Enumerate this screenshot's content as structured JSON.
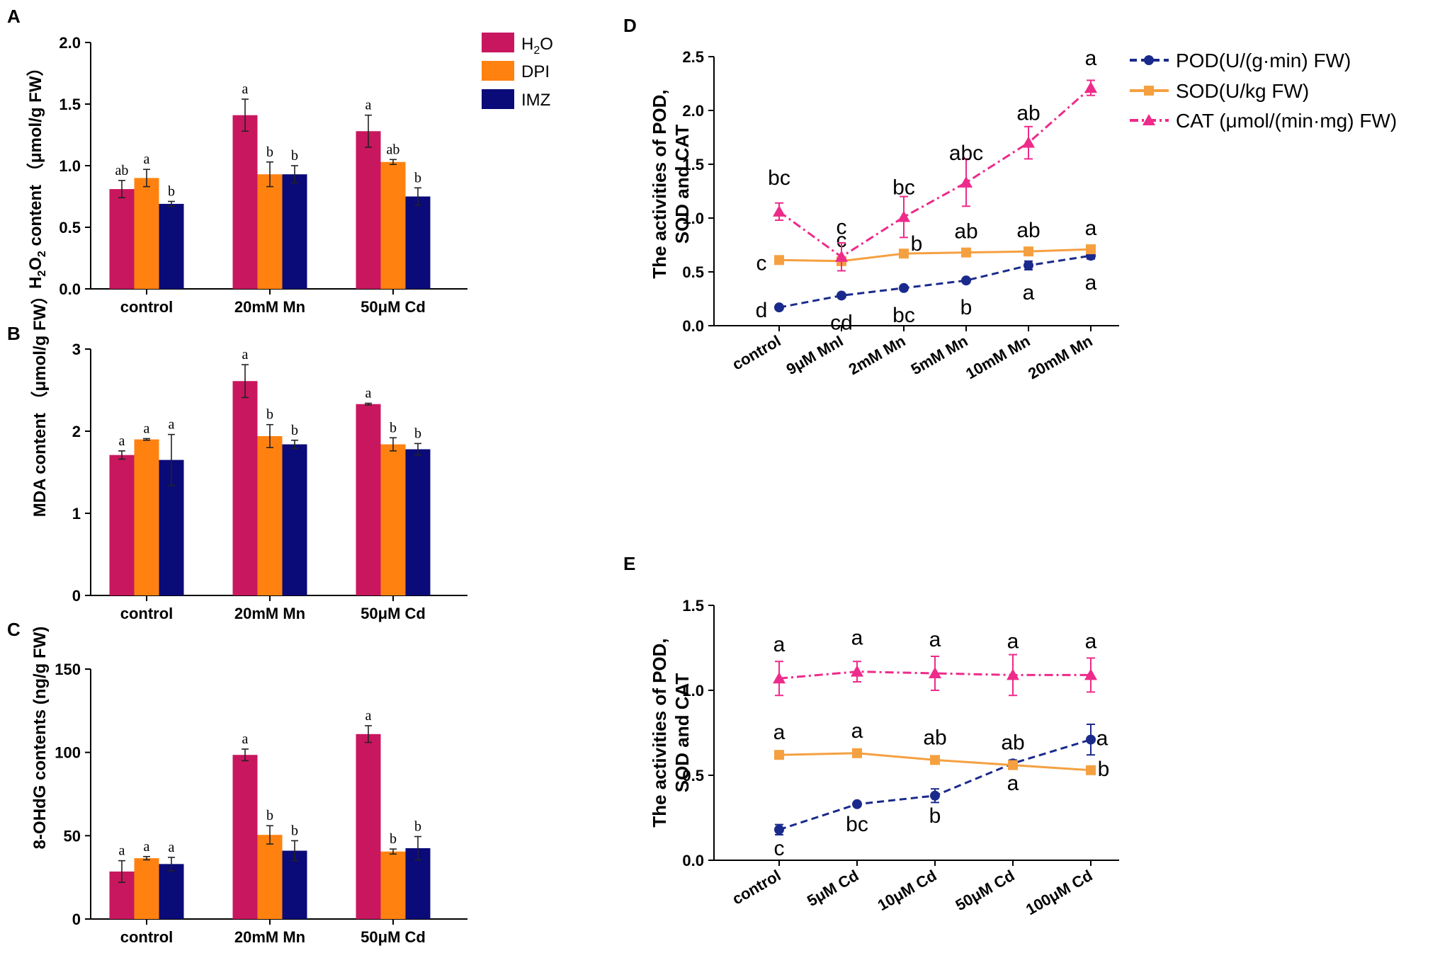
{
  "colors": {
    "h2o": "#c8175f",
    "dpi": "#ff8210",
    "imz": "#0a0a78",
    "pod": "#1a2a8c",
    "sod": "#f5a040",
    "cat": "#ee2a8a"
  },
  "panel_labels": [
    "A",
    "B",
    "C",
    "D",
    "E"
  ],
  "legend_abc": {
    "h2o_main": "H",
    "h2o_sub": "2",
    "h2o_tail": "O",
    "dpi": "DPI",
    "imz": "IMZ"
  },
  "legend_de": {
    "pod": "POD(U/(g·min) FW)",
    "sod": "SOD(U/kg FW)",
    "cat": "CAT (μmol/(min·mg) FW)"
  },
  "chart_data": [
    {
      "id": "A",
      "type": "bar",
      "ylabel_parts": [
        "H",
        "2",
        "O",
        "2",
        " content  （μmol/g FW）"
      ],
      "categories": [
        "control",
        "20mM Mn",
        "50μM Cd"
      ],
      "ylim": [
        0,
        2.0
      ],
      "yticks": [
        "0.0",
        "0.5",
        "1.0",
        "1.5",
        "2.0"
      ],
      "series": [
        {
          "name": "H2O",
          "values": [
            0.81,
            1.41,
            1.28
          ],
          "errors": [
            0.07,
            0.13,
            0.13
          ],
          "letters": [
            "ab",
            "a",
            "a"
          ]
        },
        {
          "name": "DPI",
          "values": [
            0.9,
            0.93,
            1.03
          ],
          "errors": [
            0.07,
            0.1,
            0.02
          ],
          "letters": [
            "a",
            "b",
            "ab"
          ]
        },
        {
          "name": "IMZ",
          "values": [
            0.69,
            0.93,
            0.75
          ],
          "errors": [
            0.02,
            0.07,
            0.07
          ],
          "letters": [
            "b",
            "b",
            "b"
          ]
        }
      ]
    },
    {
      "id": "B",
      "type": "bar",
      "ylabel": "MDA content  （μmol/g FW）",
      "categories": [
        "control",
        "20mM Mn",
        "50μM Cd"
      ],
      "ylim": [
        0,
        3
      ],
      "yticks": [
        "0",
        "1",
        "2",
        "3"
      ],
      "series": [
        {
          "name": "H2O",
          "values": [
            1.71,
            2.61,
            2.33
          ],
          "errors": [
            0.05,
            0.2,
            0.01
          ],
          "letters": [
            "a",
            "a",
            "a"
          ]
        },
        {
          "name": "DPI",
          "values": [
            1.9,
            1.94,
            1.84
          ],
          "errors": [
            0.01,
            0.14,
            0.08
          ],
          "letters": [
            "a",
            "b",
            "b"
          ]
        },
        {
          "name": "IMZ",
          "values": [
            1.65,
            1.84,
            1.78
          ],
          "errors": [
            0.31,
            0.05,
            0.07
          ],
          "letters": [
            "a",
            "b",
            "b"
          ]
        }
      ]
    },
    {
      "id": "C",
      "type": "bar",
      "ylabel": "8-OHdG contents (ng/g FW)",
      "categories": [
        "control",
        "20mM Mn",
        "50μM Cd"
      ],
      "ylim": [
        0,
        150
      ],
      "yticks": [
        "0",
        "50",
        "100",
        "150"
      ],
      "series": [
        {
          "name": "H2O",
          "values": [
            28.5,
            98.5,
            111
          ],
          "errors": [
            6.5,
            3.5,
            5
          ],
          "letters": [
            "a",
            "a",
            "a"
          ]
        },
        {
          "name": "DPI",
          "values": [
            36.5,
            50.5,
            40.5
          ],
          "errors": [
            1,
            5.5,
            1.5
          ],
          "letters": [
            "a",
            "b",
            "b"
          ]
        },
        {
          "name": "IMZ",
          "values": [
            33,
            41,
            42.5
          ],
          "errors": [
            4,
            6,
            7
          ],
          "letters": [
            "a",
            "b",
            "b"
          ]
        }
      ]
    },
    {
      "id": "D",
      "type": "line",
      "ylabel_line1": "The activities of POD,",
      "ylabel_line2": "SOD and  CAT",
      "categories": [
        "control",
        "9μM MnI",
        "2mM Mn",
        "5mM Mn",
        "10mM Mn",
        "20mM Mn"
      ],
      "ylim": [
        0,
        2.5
      ],
      "yticks": [
        "0.0",
        "0.5",
        "1.0",
        "1.5",
        "2.0",
        "2.5"
      ],
      "series": [
        {
          "name": "POD",
          "values": [
            0.17,
            0.28,
            0.35,
            0.42,
            0.56,
            0.65
          ],
          "errors": [
            0.02,
            0.02,
            0.02,
            0.02,
            0.04,
            0.03
          ],
          "letters": [
            "d",
            "cd",
            "bc",
            "b",
            "a",
            "a"
          ]
        },
        {
          "name": "SOD",
          "values": [
            0.61,
            0.6,
            0.67,
            0.68,
            0.69,
            0.71
          ],
          "errors": [
            0.02,
            0.02,
            0.02,
            0.02,
            0.02,
            0.02
          ],
          "letters": [
            "c",
            "c",
            "b",
            "ab",
            "ab",
            "a"
          ]
        },
        {
          "name": "CAT",
          "values": [
            1.06,
            0.64,
            1.01,
            1.33,
            1.7,
            2.21
          ],
          "errors": [
            0.08,
            0.13,
            0.19,
            0.22,
            0.15,
            0.07
          ],
          "letters": [
            "bc",
            "c",
            "bc",
            "abc",
            "ab",
            "a"
          ]
        }
      ]
    },
    {
      "id": "E",
      "type": "line",
      "ylabel_line1": "The activities of POD,",
      "ylabel_line2": "SOD and  CAT",
      "categories": [
        "control",
        "5μM Cd",
        "10μM Cd",
        "50μM Cd",
        "100μM Cd"
      ],
      "ylim": [
        0,
        1.5
      ],
      "yticks": [
        "0.0",
        "0.5",
        "1.0",
        "1.5"
      ],
      "series": [
        {
          "name": "POD",
          "values": [
            0.18,
            0.33,
            0.38,
            0.57,
            0.71
          ],
          "errors": [
            0.03,
            0.01,
            0.04,
            0.02,
            0.09
          ],
          "letters": [
            "c",
            "bc",
            "b",
            "a",
            "a"
          ]
        },
        {
          "name": "SOD",
          "values": [
            0.62,
            0.63,
            0.59,
            0.56,
            0.53
          ],
          "errors": [
            0.01,
            0.01,
            0.01,
            0.01,
            0.01
          ],
          "letters": [
            "a",
            "a",
            "ab",
            "ab",
            "b"
          ]
        },
        {
          "name": "CAT",
          "values": [
            1.07,
            1.11,
            1.1,
            1.09,
            1.09
          ],
          "errors": [
            0.1,
            0.06,
            0.1,
            0.12,
            0.1
          ],
          "letters": [
            "a",
            "a",
            "a",
            "a",
            "a"
          ]
        }
      ]
    }
  ]
}
